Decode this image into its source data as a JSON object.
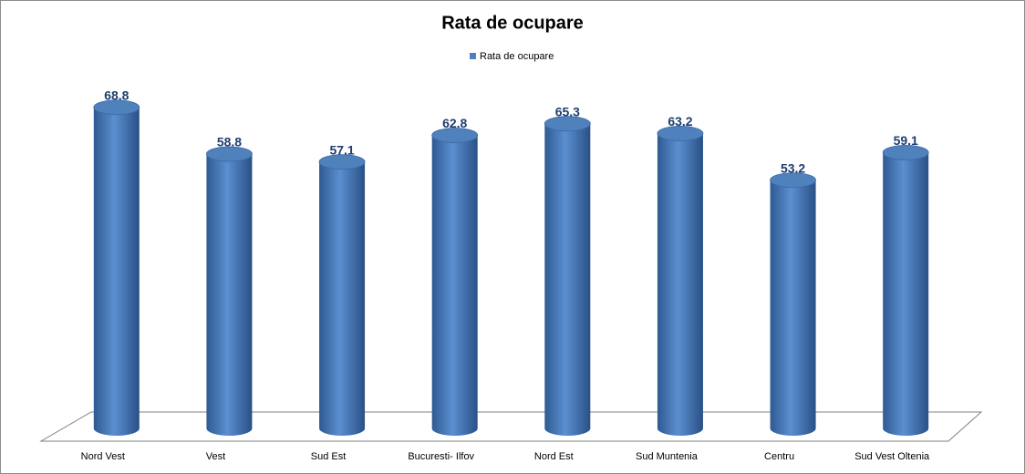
{
  "chart_data": {
    "type": "bar",
    "title": "Rata de ocupare",
    "categories": [
      "Nord Vest",
      "Vest",
      "Sud Est",
      "Bucuresti- Ilfov",
      "Nord Est",
      "Sud Muntenia",
      "Centru",
      "Sud Vest Oltenia"
    ],
    "series": [
      {
        "name": "Rata de ocupare",
        "color": "#4f81bd",
        "values": [
          68.8,
          58.8,
          57.1,
          62.8,
          65.3,
          63.2,
          53.2,
          59.1
        ]
      }
    ],
    "legend": "top"
  }
}
